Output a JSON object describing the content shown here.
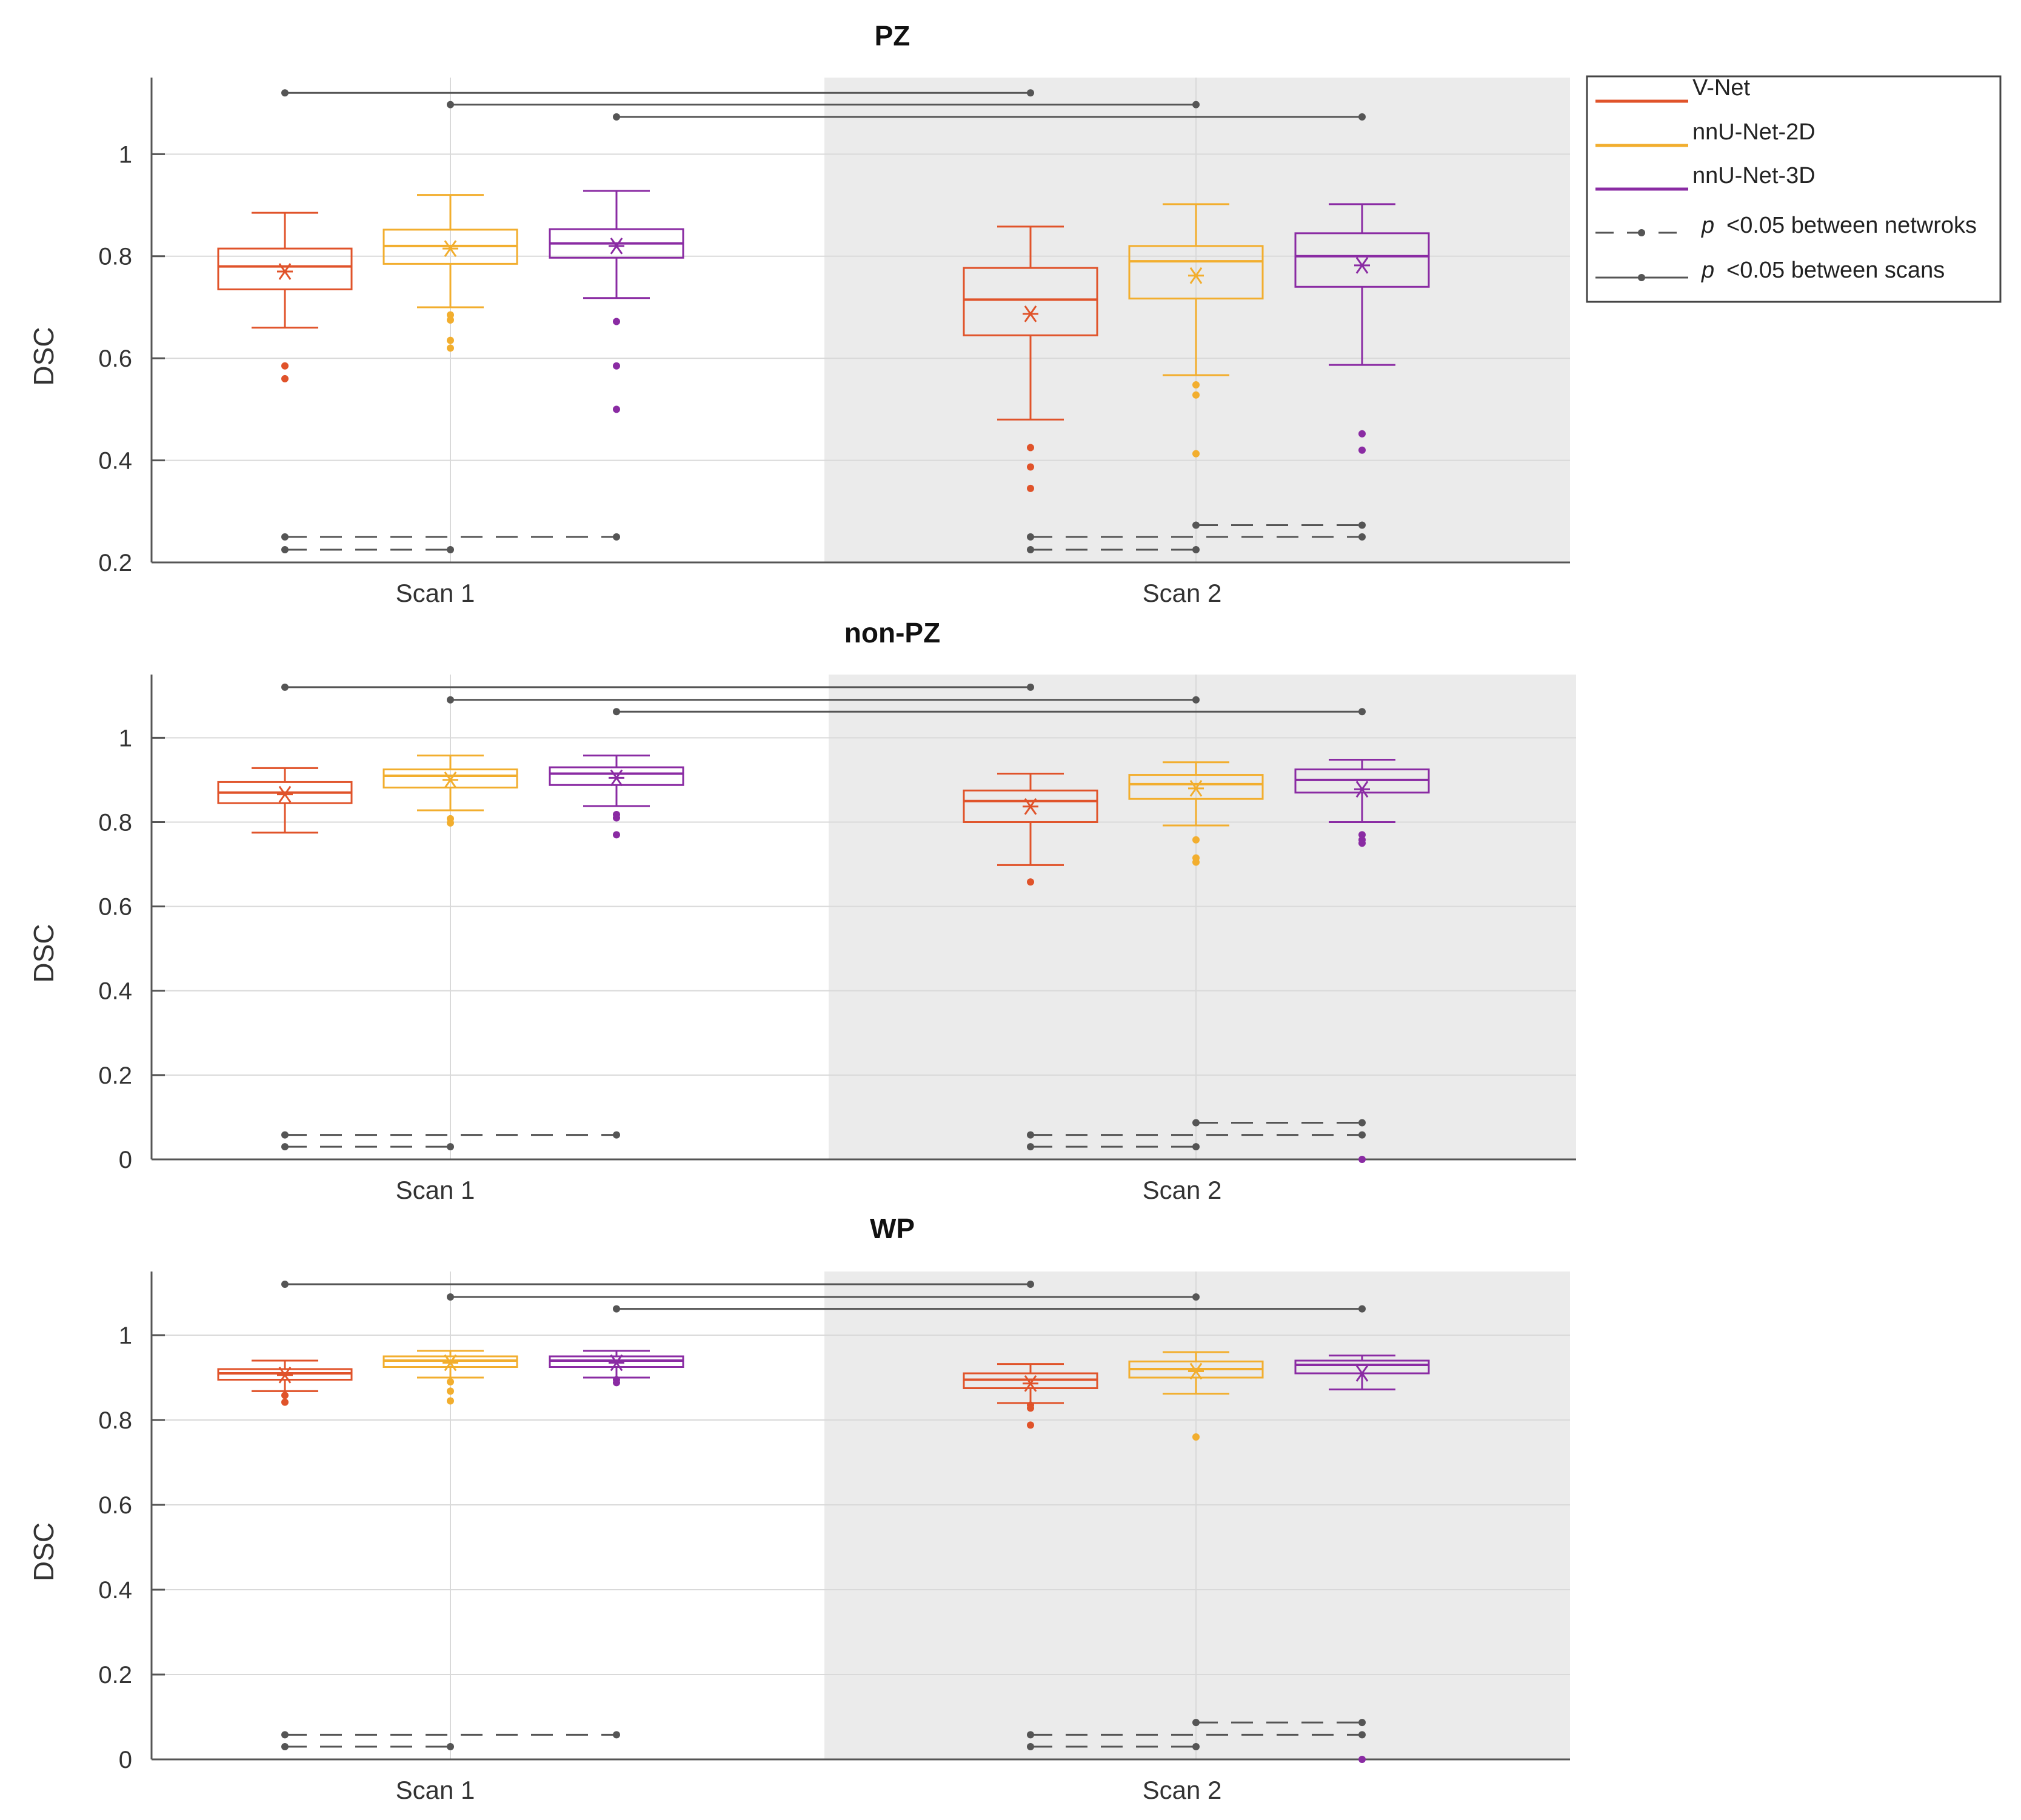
{
  "colors": {
    "vnet": "#E0532A",
    "nnunet2d": "#F2AE2E",
    "nnunet3d": "#8A2BA3",
    "sig": "#555555",
    "grid": "#d9d9d9",
    "shade": "#ebebeb",
    "axis": "#555555"
  },
  "legend": {
    "items": [
      {
        "label": "V-Net",
        "style": "vnet"
      },
      {
        "label": "nnU-Net-2D",
        "style": "nnunet2d"
      },
      {
        "label": "nnU-Net-3D",
        "style": "nnunet3d"
      },
      {
        "label": "<0.05 between netwroks",
        "p_symbol": "p",
        "style": "dashed"
      },
      {
        "label": "<0.05 between scans",
        "p_symbol": "p",
        "style": "solid"
      }
    ]
  },
  "chart_data": [
    {
      "type": "box",
      "title": "PZ",
      "ylabel": "DSC",
      "ylim": [
        0.2,
        1.15
      ],
      "yticks": [
        0.2,
        0.4,
        0.6,
        0.8,
        1
      ],
      "ytick_labels": [
        "0.2",
        "0.4",
        "0.6",
        "0.8",
        "1"
      ],
      "categories": [
        "Scan 1",
        "Scan 2"
      ],
      "shaded_category": "Scan 2",
      "series_names": [
        "V-Net",
        "nnU-Net-2D",
        "nnU-Net-3D"
      ],
      "groups": [
        {
          "category": "Scan 1",
          "boxes": [
            {
              "series": "V-Net",
              "whisker_low": 0.66,
              "q1": 0.735,
              "median": 0.78,
              "q3": 0.815,
              "whisker_high": 0.885,
              "mean": 0.77,
              "outliers": [
                0.585,
                0.56
              ]
            },
            {
              "series": "nnU-Net-2D",
              "whisker_low": 0.7,
              "q1": 0.785,
              "median": 0.82,
              "q3": 0.852,
              "whisker_high": 0.92,
              "mean": 0.815,
              "outliers": [
                0.685,
                0.675,
                0.635,
                0.62
              ]
            },
            {
              "series": "nnU-Net-3D",
              "whisker_low": 0.718,
              "q1": 0.797,
              "median": 0.825,
              "q3": 0.853,
              "whisker_high": 0.928,
              "mean": 0.82,
              "outliers": [
                0.672,
                0.585,
                0.5
              ]
            }
          ]
        },
        {
          "category": "Scan 2",
          "boxes": [
            {
              "series": "V-Net",
              "whisker_low": 0.48,
              "q1": 0.645,
              "median": 0.715,
              "q3": 0.777,
              "whisker_high": 0.858,
              "mean": 0.687,
              "outliers": [
                0.425,
                0.387,
                0.345
              ]
            },
            {
              "series": "nnU-Net-2D",
              "whisker_low": 0.567,
              "q1": 0.717,
              "median": 0.79,
              "q3": 0.82,
              "whisker_high": 0.902,
              "mean": 0.762,
              "outliers": [
                0.548,
                0.528,
                0.413
              ]
            },
            {
              "series": "nnU-Net-3D",
              "whisker_low": 0.587,
              "q1": 0.74,
              "median": 0.8,
              "q3": 0.845,
              "whisker_high": 0.902,
              "mean": 0.782,
              "outliers": [
                0.452,
                0.42
              ]
            }
          ]
        }
      ],
      "scan_significance": [
        {
          "series": "V-Net",
          "from": "Scan 1",
          "to": "Scan 2",
          "y": 1.12
        },
        {
          "series": "nnU-Net-2D",
          "from": "Scan 1",
          "to": "Scan 2",
          "y": 1.097
        },
        {
          "series": "nnU-Net-3D",
          "from": "Scan 1",
          "to": "Scan 2",
          "y": 1.073
        }
      ],
      "network_significance": [
        {
          "category": "Scan 1",
          "from": "V-Net",
          "to": "nnU-Net-2D",
          "y": 0.225
        },
        {
          "category": "Scan 1",
          "from": "V-Net",
          "to": "nnU-Net-3D",
          "y": 0.25
        },
        {
          "category": "Scan 2",
          "from": "V-Net",
          "to": "nnU-Net-2D",
          "y": 0.225
        },
        {
          "category": "Scan 2",
          "from": "V-Net",
          "to": "nnU-Net-3D",
          "y": 0.25
        },
        {
          "category": "Scan 2",
          "from": "nnU-Net-2D",
          "to": "nnU-Net-3D",
          "y": 0.273
        }
      ]
    },
    {
      "type": "box",
      "title": "non-PZ",
      "ylabel": "DSC",
      "ylim": [
        0,
        1.15
      ],
      "yticks": [
        0,
        0.2,
        0.4,
        0.6,
        0.8,
        1
      ],
      "ytick_labels": [
        "0",
        "0.2",
        "0.4",
        "0.6",
        "0.8",
        "1"
      ],
      "categories": [
        "Scan 1",
        "Scan 2"
      ],
      "shaded_category": "Scan 2",
      "series_names": [
        "V-Net",
        "nnU-Net-2D",
        "nnU-Net-3D"
      ],
      "groups": [
        {
          "category": "Scan 1",
          "boxes": [
            {
              "series": "V-Net",
              "whisker_low": 0.775,
              "q1": 0.845,
              "median": 0.87,
              "q3": 0.895,
              "whisker_high": 0.928,
              "mean": 0.866,
              "outliers": []
            },
            {
              "series": "nnU-Net-2D",
              "whisker_low": 0.828,
              "q1": 0.882,
              "median": 0.91,
              "q3": 0.925,
              "whisker_high": 0.958,
              "mean": 0.9,
              "outliers": [
                0.808,
                0.798
              ]
            },
            {
              "series": "nnU-Net-3D",
              "whisker_low": 0.838,
              "q1": 0.888,
              "median": 0.915,
              "q3": 0.93,
              "whisker_high": 0.958,
              "mean": 0.905,
              "outliers": [
                0.818,
                0.81,
                0.77
              ]
            }
          ]
        },
        {
          "category": "Scan 2",
          "boxes": [
            {
              "series": "V-Net",
              "whisker_low": 0.698,
              "q1": 0.8,
              "median": 0.85,
              "q3": 0.875,
              "whisker_high": 0.915,
              "mean": 0.837,
              "outliers": [
                0.658
              ]
            },
            {
              "series": "nnU-Net-2D",
              "whisker_low": 0.792,
              "q1": 0.855,
              "median": 0.89,
              "q3": 0.912,
              "whisker_high": 0.942,
              "mean": 0.88,
              "outliers": [
                0.758,
                0.715,
                0.705
              ]
            },
            {
              "series": "nnU-Net-3D",
              "whisker_low": 0.8,
              "q1": 0.87,
              "median": 0.9,
              "q3": 0.925,
              "whisker_high": 0.948,
              "mean": 0.878,
              "outliers": [
                0.77,
                0.758,
                0.75
              ]
            }
          ]
        }
      ],
      "scan_significance": [
        {
          "series": "V-Net",
          "from": "Scan 1",
          "to": "Scan 2",
          "y": 1.12
        },
        {
          "series": "nnU-Net-2D",
          "from": "Scan 1",
          "to": "Scan 2",
          "y": 1.09
        },
        {
          "series": "nnU-Net-3D",
          "from": "Scan 1",
          "to": "Scan 2",
          "y": 1.062
        }
      ],
      "network_significance": [
        {
          "category": "Scan 1",
          "from": "V-Net",
          "to": "nnU-Net-2D",
          "y": 0.03
        },
        {
          "category": "Scan 1",
          "from": "V-Net",
          "to": "nnU-Net-3D",
          "y": 0.058
        },
        {
          "category": "Scan 2",
          "from": "V-Net",
          "to": "nnU-Net-2D",
          "y": 0.03
        },
        {
          "category": "Scan 2",
          "from": "V-Net",
          "to": "nnU-Net-3D",
          "y": 0.058
        },
        {
          "category": "Scan 2",
          "from": "nnU-Net-2D",
          "to": "nnU-Net-3D",
          "y": 0.087
        }
      ],
      "extra_points": [
        {
          "series": "nnU-Net-3D",
          "category": "Scan 2",
          "value": 0.0
        }
      ]
    },
    {
      "type": "box",
      "title": "WP",
      "ylabel": "DSC",
      "ylim": [
        0,
        1.15
      ],
      "yticks": [
        0,
        0.2,
        0.4,
        0.6,
        0.8,
        1
      ],
      "ytick_labels": [
        "0",
        "0.2",
        "0.4",
        "0.6",
        "0.8",
        "1"
      ],
      "categories": [
        "Scan 1",
        "Scan 2"
      ],
      "shaded_category": "Scan 2",
      "series_names": [
        "V-Net",
        "nnU-Net-2D",
        "nnU-Net-3D"
      ],
      "groups": [
        {
          "category": "Scan 1",
          "boxes": [
            {
              "series": "V-Net",
              "whisker_low": 0.868,
              "q1": 0.895,
              "median": 0.91,
              "q3": 0.92,
              "whisker_high": 0.94,
              "mean": 0.906,
              "outliers": [
                0.858,
                0.842
              ]
            },
            {
              "series": "nnU-Net-2D",
              "whisker_low": 0.9,
              "q1": 0.925,
              "median": 0.94,
              "q3": 0.95,
              "whisker_high": 0.963,
              "mean": 0.935,
              "outliers": [
                0.89,
                0.868,
                0.845
              ]
            },
            {
              "series": "nnU-Net-3D",
              "whisker_low": 0.9,
              "q1": 0.925,
              "median": 0.94,
              "q3": 0.95,
              "whisker_high": 0.963,
              "mean": 0.935,
              "outliers": [
                0.895,
                0.888
              ]
            }
          ]
        },
        {
          "category": "Scan 2",
          "boxes": [
            {
              "series": "V-Net",
              "whisker_low": 0.84,
              "q1": 0.875,
              "median": 0.895,
              "q3": 0.91,
              "whisker_high": 0.932,
              "mean": 0.886,
              "outliers": [
                0.835,
                0.828,
                0.788
              ]
            },
            {
              "series": "nnU-Net-2D",
              "whisker_low": 0.862,
              "q1": 0.9,
              "median": 0.92,
              "q3": 0.938,
              "whisker_high": 0.96,
              "mean": 0.915,
              "outliers": [
                0.76
              ]
            },
            {
              "series": "nnU-Net-3D",
              "whisker_low": 0.872,
              "q1": 0.91,
              "median": 0.93,
              "q3": 0.94,
              "whisker_high": 0.952,
              "mean": 0.91,
              "outliers": []
            }
          ]
        }
      ],
      "scan_significance": [
        {
          "series": "V-Net",
          "from": "Scan 1",
          "to": "Scan 2",
          "y": 1.12
        },
        {
          "series": "nnU-Net-2D",
          "from": "Scan 1",
          "to": "Scan 2",
          "y": 1.09
        },
        {
          "series": "nnU-Net-3D",
          "from": "Scan 1",
          "to": "Scan 2",
          "y": 1.062
        }
      ],
      "network_significance": [
        {
          "category": "Scan 1",
          "from": "V-Net",
          "to": "nnU-Net-2D",
          "y": 0.03
        },
        {
          "category": "Scan 1",
          "from": "V-Net",
          "to": "nnU-Net-3D",
          "y": 0.058
        },
        {
          "category": "Scan 2",
          "from": "V-Net",
          "to": "nnU-Net-2D",
          "y": 0.03
        },
        {
          "category": "Scan 2",
          "from": "V-Net",
          "to": "nnU-Net-3D",
          "y": 0.058
        },
        {
          "category": "Scan 2",
          "from": "nnU-Net-2D",
          "to": "nnU-Net-3D",
          "y": 0.087
        }
      ],
      "extra_points": [
        {
          "series": "nnU-Net-3D",
          "category": "Scan 2",
          "value": 0.0
        }
      ]
    }
  ]
}
